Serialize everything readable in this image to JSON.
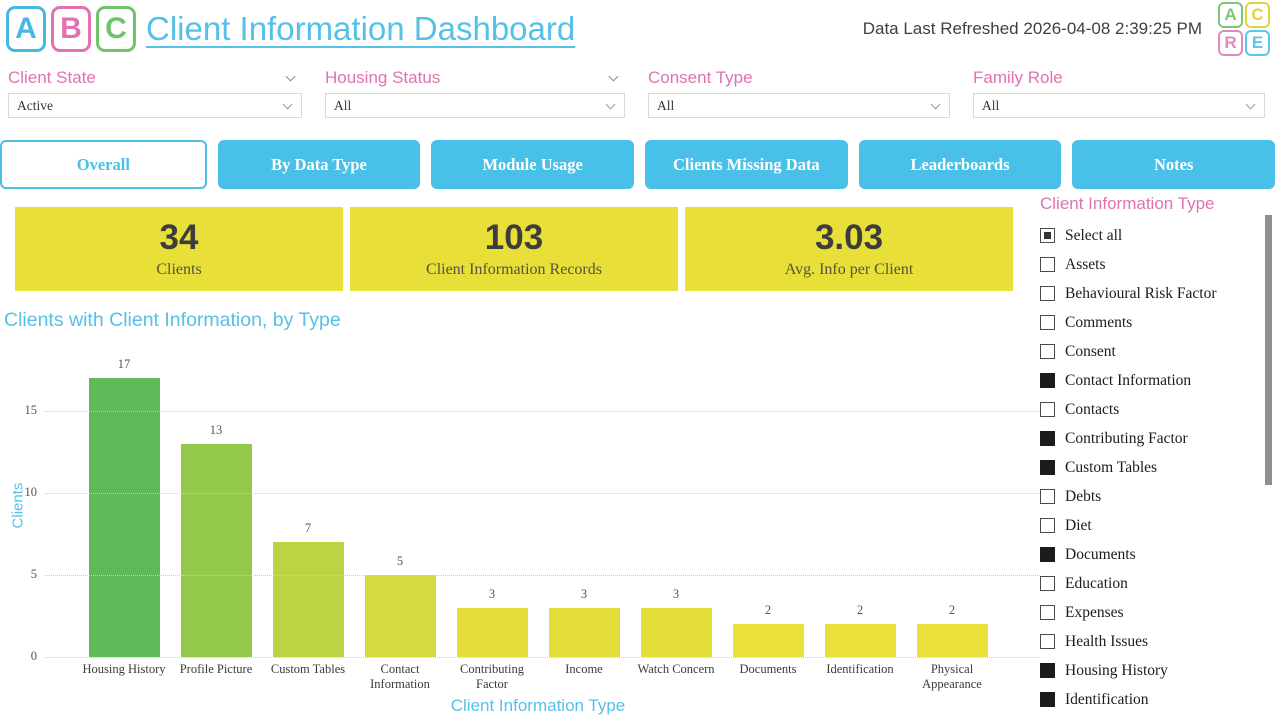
{
  "header": {
    "title": "Client Information Dashboard",
    "refreshed_text": "Data Last Refreshed 2026-04-08 2:39:25 PM",
    "logo_left": [
      {
        "letter": "A",
        "color": "#45b8e4"
      },
      {
        "letter": "B",
        "color": "#e46fb2"
      },
      {
        "letter": "C",
        "color": "#6fc46b"
      }
    ],
    "logo_right": [
      {
        "letter": "A",
        "color": "#7cc674"
      },
      {
        "letter": "C",
        "color": "#e3d33e"
      },
      {
        "letter": "R",
        "color": "#e388be"
      },
      {
        "letter": "E",
        "color": "#5ec6ea"
      }
    ]
  },
  "filters": [
    {
      "label": "Client State",
      "value": "Active",
      "label_chevron": true
    },
    {
      "label": "Housing Status",
      "value": "All",
      "label_chevron": true
    },
    {
      "label": "Consent Type",
      "value": "All",
      "label_chevron": false
    },
    {
      "label": "Family Role",
      "value": "All",
      "label_chevron": false
    }
  ],
  "tabs": [
    {
      "label": "Overall",
      "active": true
    },
    {
      "label": "By Data Type",
      "active": false
    },
    {
      "label": "Module Usage",
      "active": false
    },
    {
      "label": "Clients Missing Data",
      "active": false
    },
    {
      "label": "Leaderboards",
      "active": false
    },
    {
      "label": "Notes",
      "active": false
    }
  ],
  "kpis": [
    {
      "value": "34",
      "label": "Clients"
    },
    {
      "value": "103",
      "label": "Client Information Records"
    },
    {
      "value": "3.03",
      "label": "Avg. Info per Client"
    }
  ],
  "chart_data": {
    "type": "bar",
    "title": "Clients with Client Information, by Type",
    "xlabel": "Client Information Type",
    "ylabel": "Clients",
    "categories": [
      "Housing History",
      "Profile Picture",
      "Custom Tables",
      "Contact Information",
      "Contributing Factor",
      "Income",
      "Watch Concern",
      "Documents",
      "Identification",
      "Physical Appearance"
    ],
    "values": [
      17,
      13,
      7,
      5,
      3,
      3,
      3,
      2,
      2,
      2
    ],
    "bar_colors": [
      "#61ba59",
      "#94c84b",
      "#bdd343",
      "#d5da3e",
      "#e3de39",
      "#e3de39",
      "#e3de39",
      "#eae03a",
      "#eae03a",
      "#eae03a"
    ],
    "yticks": [
      0,
      5,
      10,
      15
    ],
    "ylim": [
      0,
      18.4
    ],
    "grid": "horizontal-dotted",
    "legend": "none",
    "data_labels": true
  },
  "panel": {
    "title": "Client Information Type",
    "items": [
      {
        "label": "Select all",
        "state": "indeterminate"
      },
      {
        "label": "Assets",
        "state": "unchecked"
      },
      {
        "label": "Behavioural Risk Factor",
        "state": "unchecked"
      },
      {
        "label": "Comments",
        "state": "unchecked"
      },
      {
        "label": "Consent",
        "state": "unchecked"
      },
      {
        "label": "Contact Information",
        "state": "checked"
      },
      {
        "label": "Contacts",
        "state": "unchecked"
      },
      {
        "label": "Contributing Factor",
        "state": "checked"
      },
      {
        "label": "Custom Tables",
        "state": "checked"
      },
      {
        "label": "Debts",
        "state": "unchecked"
      },
      {
        "label": "Diet",
        "state": "unchecked"
      },
      {
        "label": "Documents",
        "state": "checked"
      },
      {
        "label": "Education",
        "state": "unchecked"
      },
      {
        "label": "Expenses",
        "state": "unchecked"
      },
      {
        "label": "Health Issues",
        "state": "unchecked"
      },
      {
        "label": "Housing History",
        "state": "checked"
      },
      {
        "label": "Identification",
        "state": "checked"
      }
    ]
  },
  "colors": {
    "accent_blue": "#49c0e8",
    "title_blue": "#56c0e8",
    "pink": "#df73b1",
    "kpi_yellow": "#e8e039",
    "checkbox_checked": "#1c1c1c",
    "scrollbar": "#8f8f8f"
  }
}
